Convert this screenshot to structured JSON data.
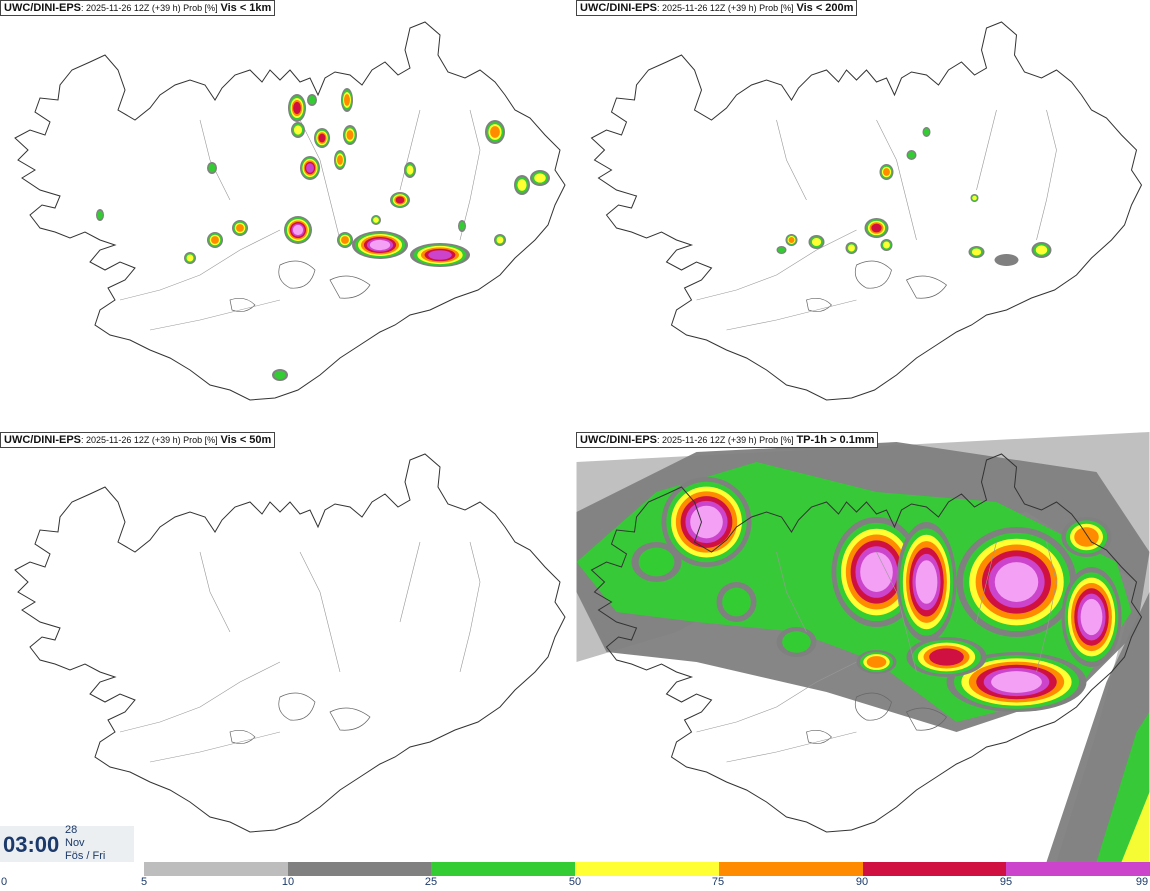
{
  "panels": [
    {
      "model": "UWC/DINI-EPS",
      "meta": ": 2025-11-26 12Z (+39 h) Prob [%]",
      "variable": "Vis < 1km"
    },
    {
      "model": "UWC/DINI-EPS",
      "meta": ": 2025-11-26 12Z (+39 h) Prob [%]",
      "variable": "Vis < 200m"
    },
    {
      "model": "UWC/DINI-EPS",
      "meta": ": 2025-11-26 12Z (+39 h) Prob [%]",
      "variable": "Vis < 50m"
    },
    {
      "model": "UWC/DINI-EPS",
      "meta": ": 2025-11-26 12Z (+39 h) Prob [%]",
      "variable": "TP-1h > 0.1mm"
    }
  ],
  "timestamp": {
    "time": "03:00",
    "day": "28",
    "month": "Nov",
    "weekday": "Fös / Fri"
  },
  "colorbar": {
    "ticks": [
      "0",
      "5",
      "10",
      "25",
      "50",
      "75",
      "90",
      "95",
      "99"
    ],
    "colors": [
      "#ffffff",
      "#bdbdbd",
      "#808080",
      "#33cc33",
      "#ffff33",
      "#ff8c00",
      "#d01040",
      "#cc44cc",
      "#f4a0f4"
    ]
  }
}
